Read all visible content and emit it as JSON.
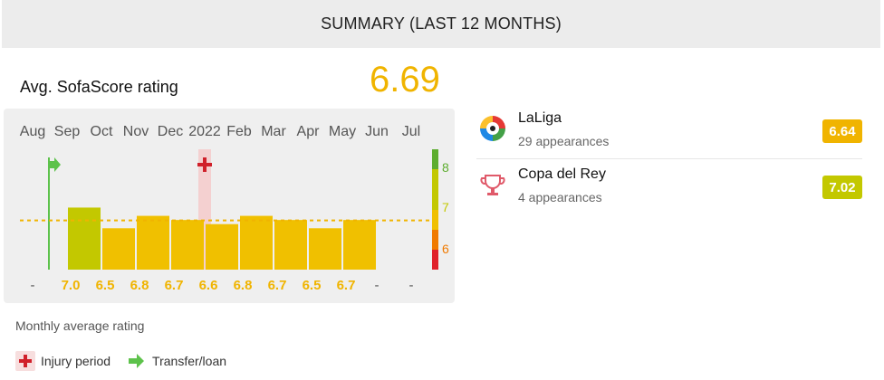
{
  "header": {
    "title": "SUMMARY (LAST 12 MONTHS)"
  },
  "average": {
    "label": "Avg. SofaScore rating",
    "value": "6.69",
    "value_color": "#f0b400"
  },
  "chart_data": {
    "type": "bar",
    "categories": [
      "Aug",
      "Sep",
      "Oct",
      "Nov",
      "Dec",
      "2022",
      "Feb",
      "Mar",
      "Apr",
      "May",
      "Jun",
      "Jul"
    ],
    "values": [
      null,
      7.0,
      6.5,
      6.8,
      6.7,
      6.6,
      6.8,
      6.7,
      6.5,
      6.7,
      null,
      null
    ],
    "value_labels": [
      "-",
      "7.0",
      "6.5",
      "6.8",
      "6.7",
      "6.6",
      "6.8",
      "6.7",
      "6.5",
      "6.7",
      "-",
      "-"
    ],
    "reference_line": 6.69,
    "scale_labels": [
      "8",
      "7",
      "6"
    ],
    "ylim": [
      5.5,
      8.3
    ],
    "colors": {
      "bar_high": "#c3c800",
      "bar_mid": "#f0c000",
      "reference": "#f0b400",
      "label": "#f0b400"
    },
    "markers": {
      "transfer_month": "Sep",
      "injury_month": "2022"
    }
  },
  "footnote": "Monthly average rating",
  "legend": {
    "injury": "Injury period",
    "transfer": "Transfer/loan"
  },
  "competitions": [
    {
      "name": "LaLiga",
      "subtitle": "29 appearances",
      "rating": "6.64",
      "badge_color": "#f0b400",
      "icon": "laliga-logo-icon"
    },
    {
      "name": "Copa del Rey",
      "subtitle": "4 appearances",
      "rating": "7.02",
      "badge_color": "#c3c800",
      "icon": "copa-del-rey-icon"
    }
  ]
}
